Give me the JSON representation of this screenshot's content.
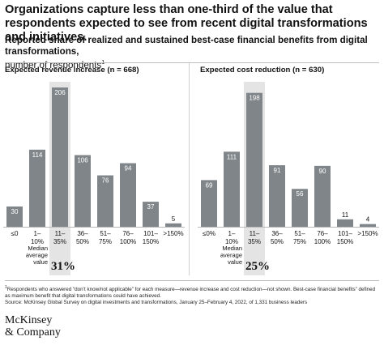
{
  "title": "Organizations capture less than one-third of the value that respondents expected to see from recent digital transformations and initiatives.",
  "subtitle_main": "Reported share of realized and sustained best-case financial benefits from digital transformations,",
  "subtitle_unit": "number of respondents",
  "subtitle_mark": "1",
  "colors": {
    "bar": "#7f8589",
    "highlight_band": "#e4e4e4",
    "text": "#111111"
  },
  "chart_data": [
    {
      "type": "bar",
      "title": "Expected revenue increase (n = 668)",
      "categories": [
        "≤0",
        "1–10%",
        "11–35%",
        "36–50%",
        "51–75%",
        "76–100%",
        "101–150%",
        ">150%"
      ],
      "category_lines": [
        [
          "≤0"
        ],
        [
          "1–",
          "10%"
        ],
        [
          "11–",
          "35%"
        ],
        [
          "36–",
          "50%"
        ],
        [
          "51–",
          "75%"
        ],
        [
          "76–",
          "100%"
        ],
        [
          "101–",
          "150%"
        ],
        [
          ">150%"
        ]
      ],
      "values": [
        30,
        114,
        206,
        106,
        76,
        94,
        37,
        5
      ],
      "highlight_index": 2,
      "median_label": [
        "Median",
        "average",
        "value"
      ],
      "median_value": "31%",
      "ylim": [
        0,
        206
      ]
    },
    {
      "type": "bar",
      "title": "Expected cost reduction (n = 630)",
      "categories": [
        "≤0%",
        "1–10%",
        "11–35%",
        "36–50%",
        "51–75%",
        "76–100%",
        "101–150%",
        ">150%"
      ],
      "category_lines": [
        [
          "≤0%"
        ],
        [
          "1–",
          "10%"
        ],
        [
          "11–",
          "35%"
        ],
        [
          "36–",
          "50%"
        ],
        [
          "51–",
          "75%"
        ],
        [
          "76–",
          "100%"
        ],
        [
          "101–",
          "150%"
        ],
        [
          ">150%"
        ]
      ],
      "values": [
        69,
        111,
        198,
        91,
        56,
        90,
        11,
        4
      ],
      "highlight_index": 2,
      "median_label": [
        "Median",
        "average",
        "value"
      ],
      "median_value": "25%",
      "ylim": [
        0,
        206
      ]
    }
  ],
  "footnote_mark": "1",
  "footnote": "Respondents who answered “don’t know/not applicable” for each measure—revenue increase and cost reduction—not shown. Best-case financial benefits” defined as maximum benefit that digital transformations could have achieved.",
  "source": "Source: McKinsey Global Survey on digital investments and transformations, January 25–February 4, 2022, of 1,331 business leaders",
  "logo_lines": [
    "McKinsey",
    "& Company"
  ]
}
